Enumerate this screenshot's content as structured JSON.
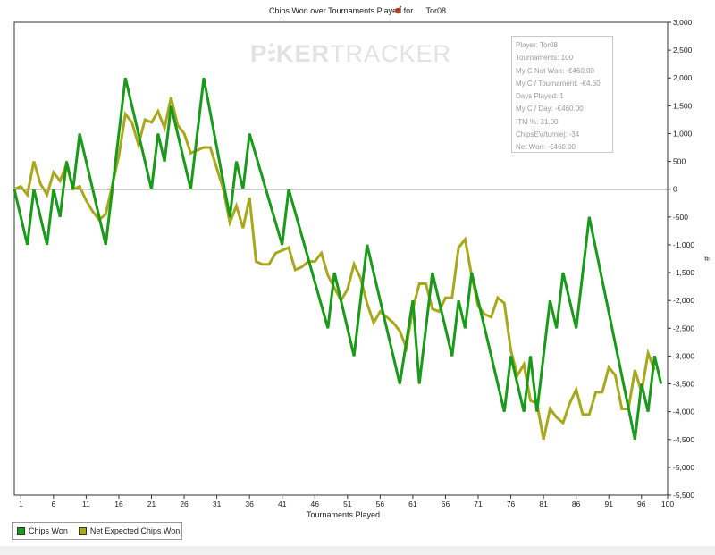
{
  "chart_data": {
    "type": "line",
    "title": "Chips Won over Tournaments Played for",
    "player": "Tor08",
    "xlabel": "Tournaments Played",
    "ylabel": "#",
    "xlim": [
      0,
      100
    ],
    "ylim": [
      -5500,
      3000
    ],
    "xticks": [
      1,
      6,
      11,
      16,
      21,
      26,
      31,
      36,
      41,
      46,
      51,
      56,
      61,
      66,
      71,
      76,
      81,
      86,
      91,
      96,
      100
    ],
    "yticks": [
      3000,
      2500,
      2000,
      1500,
      1000,
      500,
      0,
      -500,
      -1000,
      -1500,
      -2000,
      -2500,
      -3000,
      -3500,
      -4000,
      -4500,
      -5000,
      -5500
    ],
    "ytick_labels": [
      "3,000",
      "2,500",
      "2,000",
      "1,500",
      "1,000",
      "500",
      "0",
      "-500",
      "-1,000",
      "-1,500",
      "-2,000",
      "-2,500",
      "-3,000",
      "-3,500",
      "-4,000",
      "-4,500",
      "-5,000",
      "-5,500"
    ],
    "grid": false,
    "legend_position": "bottom-left",
    "series": [
      {
        "name": "Chips Won",
        "color": "#1a9a1a",
        "points": [
          [
            0,
            0
          ],
          [
            2,
            -1000
          ],
          [
            3,
            0
          ],
          [
            5,
            -1000
          ],
          [
            6,
            0
          ],
          [
            7,
            -500
          ],
          [
            8,
            500
          ],
          [
            9,
            0
          ],
          [
            10,
            1000
          ],
          [
            14,
            -1000
          ],
          [
            17,
            2000
          ],
          [
            21,
            0
          ],
          [
            22,
            1000
          ],
          [
            23,
            500
          ],
          [
            24,
            1500
          ],
          [
            27,
            0
          ],
          [
            29,
            2000
          ],
          [
            33,
            -500
          ],
          [
            34,
            500
          ],
          [
            35,
            0
          ],
          [
            36,
            1000
          ],
          [
            41,
            -1000
          ],
          [
            42,
            0
          ],
          [
            48,
            -2500
          ],
          [
            49,
            -1500
          ],
          [
            52,
            -3000
          ],
          [
            54,
            -1000
          ],
          [
            59,
            -3500
          ],
          [
            61,
            -2000
          ],
          [
            62,
            -3500
          ],
          [
            64,
            -1500
          ],
          [
            67,
            -3000
          ],
          [
            68,
            -2000
          ],
          [
            69,
            -2500
          ],
          [
            70,
            -1500
          ],
          [
            75,
            -4000
          ],
          [
            76,
            -3000
          ],
          [
            78,
            -4000
          ],
          [
            79,
            -3000
          ],
          [
            80,
            -4000
          ],
          [
            82,
            -2000
          ],
          [
            83,
            -2500
          ],
          [
            84,
            -1500
          ],
          [
            86,
            -2500
          ],
          [
            88,
            -500
          ],
          [
            95,
            -4500
          ],
          [
            96,
            -3500
          ],
          [
            97,
            -4000
          ],
          [
            98,
            -3000
          ],
          [
            99,
            -3500
          ]
        ]
      },
      {
        "name": "Net Expected Chips Won",
        "color": "#a8a81e",
        "points": [
          [
            0,
            0
          ],
          [
            1,
            50
          ],
          [
            2,
            -100
          ],
          [
            3,
            500
          ],
          [
            4,
            100
          ],
          [
            5,
            -100
          ],
          [
            6,
            300
          ],
          [
            7,
            150
          ],
          [
            8,
            450
          ],
          [
            9,
            0
          ],
          [
            10,
            50
          ],
          [
            11,
            -200
          ],
          [
            12,
            -400
          ],
          [
            13,
            -550
          ],
          [
            14,
            -450
          ],
          [
            16,
            600
          ],
          [
            17,
            1350
          ],
          [
            18,
            1200
          ],
          [
            19,
            800
          ],
          [
            20,
            1250
          ],
          [
            21,
            1200
          ],
          [
            22,
            1400
          ],
          [
            23,
            1100
          ],
          [
            24,
            1650
          ],
          [
            25,
            1150
          ],
          [
            26,
            1000
          ],
          [
            27,
            650
          ],
          [
            28,
            700
          ],
          [
            29,
            750
          ],
          [
            30,
            750
          ],
          [
            32,
            0
          ],
          [
            33,
            -600
          ],
          [
            34,
            -300
          ],
          [
            35,
            -700
          ],
          [
            36,
            -150
          ],
          [
            37,
            -1300
          ],
          [
            38,
            -1350
          ],
          [
            39,
            -1350
          ],
          [
            40,
            -1150
          ],
          [
            41,
            -1100
          ],
          [
            42,
            -1050
          ],
          [
            43,
            -1450
          ],
          [
            44,
            -1400
          ],
          [
            45,
            -1300
          ],
          [
            46,
            -1300
          ],
          [
            47,
            -1150
          ],
          [
            48,
            -1550
          ],
          [
            50,
            -2000
          ],
          [
            51,
            -1800
          ],
          [
            52,
            -1350
          ],
          [
            53,
            -1600
          ],
          [
            54,
            -2050
          ],
          [
            55,
            -2400
          ],
          [
            56,
            -2200
          ],
          [
            57,
            -2300
          ],
          [
            58,
            -2400
          ],
          [
            59,
            -2550
          ],
          [
            60,
            -2850
          ],
          [
            61,
            -2150
          ],
          [
            62,
            -1700
          ],
          [
            63,
            -1700
          ],
          [
            64,
            -2150
          ],
          [
            65,
            -2200
          ],
          [
            66,
            -1950
          ],
          [
            67,
            -1950
          ],
          [
            68,
            -1050
          ],
          [
            69,
            -900
          ],
          [
            70,
            -1550
          ],
          [
            71,
            -2100
          ],
          [
            72,
            -2250
          ],
          [
            73,
            -2300
          ],
          [
            74,
            -1950
          ],
          [
            75,
            -2050
          ],
          [
            76,
            -2900
          ],
          [
            77,
            -3350
          ],
          [
            78,
            -3150
          ],
          [
            79,
            -3800
          ],
          [
            80,
            -3850
          ],
          [
            81,
            -4500
          ],
          [
            82,
            -3950
          ],
          [
            83,
            -4100
          ],
          [
            84,
            -4200
          ],
          [
            85,
            -3850
          ],
          [
            86,
            -3600
          ],
          [
            87,
            -4050
          ],
          [
            88,
            -4050
          ],
          [
            89,
            -3650
          ],
          [
            90,
            -3650
          ],
          [
            91,
            -3200
          ],
          [
            92,
            -3350
          ],
          [
            93,
            -3950
          ],
          [
            94,
            -3950
          ],
          [
            95,
            -3250
          ],
          [
            96,
            -3650
          ],
          [
            97,
            -2950
          ],
          [
            98,
            -3250
          ]
        ]
      }
    ]
  },
  "info_box": {
    "rows": [
      "Player: Tor08",
      "Tournaments: 100",
      "My C Net Won: -€460.00",
      "My C / Tournament: -€4.60",
      "Days Played: 1",
      "My C / Day: -€460.00",
      "ITM %: 31.00",
      "ChipsEV/turniej: -34",
      "Net Won: -€460.00"
    ]
  },
  "watermark": {
    "part1": "P",
    "part2": "KER",
    "part3": "TRACKER"
  },
  "legend": {
    "items": [
      "Chips Won",
      "Net Expected Chips Won"
    ]
  },
  "colors": {
    "chips_won": "#1a9a1a",
    "net_expected": "#a8a81e"
  }
}
